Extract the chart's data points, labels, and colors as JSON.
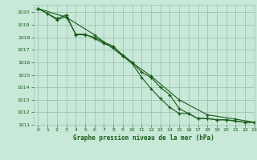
{
  "title": "Graphe pression niveau de la mer (hPa)",
  "bg_color": "#c8e8d8",
  "grid_color": "#a0c4b0",
  "line_color": "#1a5c1a",
  "marker_color": "#1a5c1a",
  "xlim": [
    -0.5,
    23
  ],
  "ylim": [
    1011,
    1020.6
  ],
  "yticks": [
    1011,
    1012,
    1013,
    1014,
    1015,
    1016,
    1017,
    1018,
    1019,
    1020
  ],
  "xticks": [
    0,
    1,
    2,
    3,
    4,
    5,
    6,
    7,
    8,
    9,
    10,
    11,
    12,
    13,
    14,
    15,
    16,
    17,
    18,
    19,
    20,
    21,
    22,
    23
  ],
  "series1": {
    "x": [
      0,
      1,
      2,
      3,
      4,
      5,
      6,
      7,
      8,
      9,
      10,
      11,
      12,
      13,
      14,
      15,
      16,
      17,
      18,
      19,
      20,
      21,
      22,
      23
    ],
    "y": [
      1020.3,
      1019.9,
      1019.5,
      1019.8,
      1018.2,
      1018.2,
      1018.0,
      1017.6,
      1017.3,
      1016.5,
      1015.9,
      1014.8,
      1013.9,
      1013.1,
      1012.4,
      1011.9,
      1011.9,
      1011.5,
      1011.5,
      1011.4,
      1011.4,
      1011.3,
      1011.2,
      1011.2
    ]
  },
  "series2": {
    "x": [
      0,
      1,
      2,
      3,
      4,
      5,
      6,
      7,
      8,
      9,
      10,
      11,
      12,
      13,
      14,
      15,
      16,
      17,
      18,
      19,
      20,
      21,
      22,
      23
    ],
    "y": [
      1020.3,
      1019.9,
      1019.4,
      1019.65,
      1018.25,
      1018.25,
      1017.9,
      1017.5,
      1017.2,
      1016.6,
      1016.0,
      1015.2,
      1014.8,
      1014.0,
      1013.4,
      1012.3,
      1011.9,
      1011.5,
      1011.5,
      1011.4,
      1011.4,
      1011.3,
      1011.2,
      1011.2
    ]
  },
  "series3": {
    "x": [
      0,
      3,
      6,
      9,
      12,
      15,
      18,
      21,
      23
    ],
    "y": [
      1020.3,
      1019.6,
      1018.2,
      1016.5,
      1014.9,
      1013.0,
      1011.8,
      1011.45,
      1011.2
    ]
  }
}
